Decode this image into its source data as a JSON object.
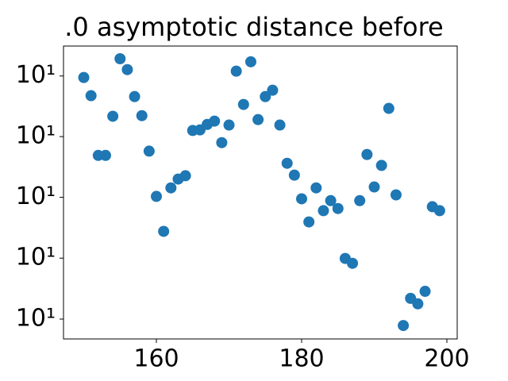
{
  "chart_data": {
    "type": "scatter",
    "title": ".0 asymptotic distance before",
    "x": [
      150,
      151,
      152,
      153,
      154,
      155,
      156,
      157,
      158,
      159,
      160,
      161,
      162,
      163,
      164,
      165,
      166,
      167,
      168,
      169,
      170,
      171,
      172,
      173,
      174,
      175,
      176,
      177,
      178,
      179,
      180,
      181,
      182,
      183,
      184,
      185,
      186,
      187,
      188,
      189,
      190,
      191,
      192,
      193,
      194,
      195,
      196,
      197,
      198,
      199
    ],
    "values": [
      10.0795,
      10.0735,
      10.0538,
      10.0538,
      10.0667,
      10.0857,
      10.0821,
      10.0732,
      10.0669,
      10.0552,
      10.0403,
      10.0288,
      10.0431,
      10.046,
      10.0471,
      10.062,
      10.0622,
      10.064,
      10.0651,
      10.058,
      10.0638,
      10.0816,
      10.0706,
      10.0847,
      10.0656,
      10.0732,
      10.0753,
      10.0638,
      10.0512,
      10.0473,
      10.0395,
      10.0319,
      10.0431,
      10.0356,
      10.0389,
      10.0363,
      10.0199,
      10.0183,
      10.0389,
      10.0541,
      10.0434,
      10.0505,
      10.0693,
      10.0408,
      9.9979,
      10.0068,
      10.005,
      10.0091,
      10.0369,
      10.0356
    ],
    "color": "#1f77b4",
    "xlim": [
      147.21,
      201.42
    ],
    "xticks": [
      160,
      180,
      200
    ],
    "ylim": [
      9.9935,
      10.0899
    ],
    "log_y": true,
    "yticks": [
      {
        "value": 10.0,
        "label": "10¹"
      },
      {
        "value": 10.02,
        "label": "10¹"
      },
      {
        "value": 10.04,
        "label": "10¹"
      },
      {
        "value": 10.06,
        "label": "10¹"
      },
      {
        "value": 10.08,
        "label": "10¹"
      }
    ]
  }
}
